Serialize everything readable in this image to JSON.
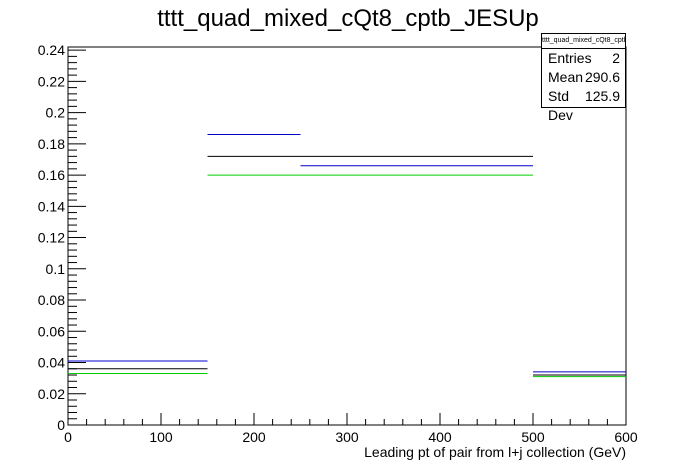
{
  "chart_data": {
    "type": "step",
    "title": "tttt_quad_mixed_cQt8_cptb_JESUp",
    "xlabel": "Leading pt of pair from l+j collection (GeV)",
    "ylabel": "",
    "xlim": [
      0,
      600
    ],
    "ylim": [
      0,
      0.242
    ],
    "x_ticks": [
      0,
      100,
      200,
      300,
      400,
      500,
      600
    ],
    "y_ticks": [
      0,
      0.02,
      0.04,
      0.06,
      0.08,
      0.1,
      0.12,
      0.14,
      0.16,
      0.18,
      0.2,
      0.22,
      0.24
    ],
    "x_tick_labels": [
      "0",
      "100",
      "200",
      "300",
      "400",
      "500",
      "600"
    ],
    "y_tick_labels": [
      "0",
      "0.02",
      "0.04",
      "0.06",
      "0.08",
      "0.1",
      "0.12",
      "0.14",
      "0.16",
      "0.18",
      "0.2",
      "0.22",
      "0.24"
    ],
    "grid": false,
    "series": [
      {
        "color": "#000000",
        "bins": [
          {
            "x0": 0,
            "x1": 150,
            "y": 0.036
          },
          {
            "x0": 150,
            "x1": 250,
            "y": 0.172
          },
          {
            "x0": 250,
            "x1": 500,
            "y": 0.172
          },
          {
            "x0": 500,
            "x1": 600,
            "y": 0.032
          }
        ]
      },
      {
        "color": "#0000cc",
        "bins": [
          {
            "x0": 0,
            "x1": 150,
            "y": 0.041
          },
          {
            "x0": 150,
            "x1": 250,
            "y": 0.186
          },
          {
            "x0": 250,
            "x1": 500,
            "y": 0.166
          },
          {
            "x0": 500,
            "x1": 600,
            "y": 0.034
          }
        ]
      },
      {
        "color": "#00cc00",
        "bins": [
          {
            "x0": 0,
            "x1": 150,
            "y": 0.033
          },
          {
            "x0": 150,
            "x1": 250,
            "y": 0.16
          },
          {
            "x0": 250,
            "x1": 500,
            "y": 0.16
          },
          {
            "x0": 500,
            "x1": 600,
            "y": 0.031
          }
        ]
      }
    ],
    "stats": {
      "title": "tttt_quad_mixed_cQt8_cptb_JESUp",
      "rows": [
        {
          "label": "Entries",
          "value": "2"
        },
        {
          "label": "Mean",
          "value": "290.6"
        },
        {
          "label": "Std Dev",
          "value": "125.9"
        }
      ]
    }
  }
}
